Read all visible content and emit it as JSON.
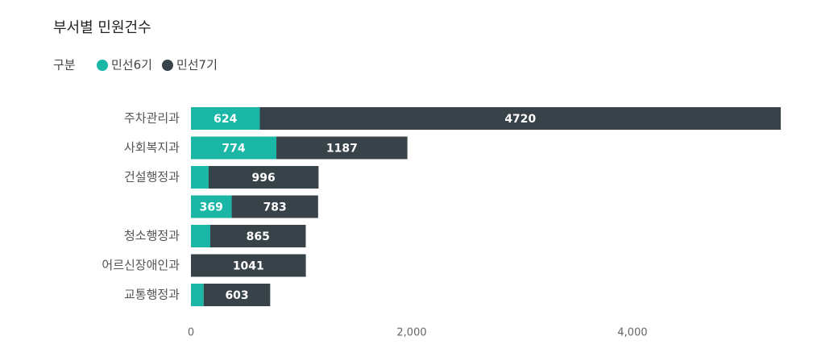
{
  "chart_data": {
    "type": "stacked-bar-horizontal",
    "title": "부서별 민원건수",
    "legend_title": "구분",
    "categories": [
      "주차관리과",
      "사회복지과",
      "건설행정과",
      null,
      "청소행정과",
      "어르신장애인과",
      "교통행정과"
    ],
    "series": [
      {
        "name": "민선6기",
        "color": "#1ab6a6",
        "values": [
          624,
          774,
          160,
          369,
          175,
          0,
          115
        ]
      },
      {
        "name": "민선7기",
        "color": "#374348",
        "values": [
          4720,
          1187,
          996,
          783,
          865,
          1041,
          603
        ]
      }
    ],
    "xlim": [
      0,
      5400
    ],
    "xticks": [
      0,
      {
        "value": 2000,
        "label": "2,000"
      },
      {
        "value": 4000,
        "label": "4,000"
      }
    ],
    "grid": false
  }
}
